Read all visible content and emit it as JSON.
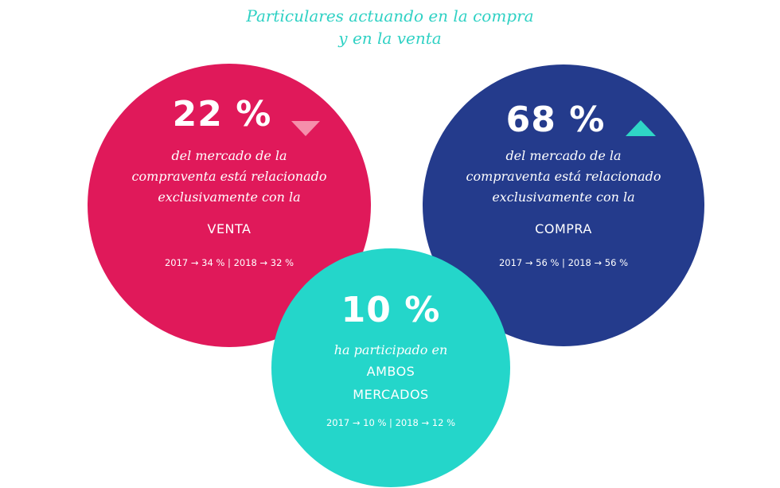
{
  "title": {
    "line1": "Particulares actuando en la compra",
    "line2": "y en la venta",
    "color": "#2fd1c4"
  },
  "chart_data": {
    "type": "bubble",
    "title": "Particulares actuando en la compra y en la venta",
    "items": [
      {
        "id": "venta",
        "value": 22,
        "value_label": "22 %",
        "trend": "down",
        "trend_color": "#f58fab",
        "description": [
          "del mercado de la",
          "compraventa está relacionado",
          "exclusivamente con la"
        ],
        "category": "VENTA",
        "history": {
          "2017": 34,
          "2018": 32
        },
        "history_label": "2017 → 34 % | 2018 → 32 %",
        "color": "#e0195a"
      },
      {
        "id": "compra",
        "value": 68,
        "value_label": "68 %",
        "trend": "up",
        "trend_color": "#2fd6c6",
        "description": [
          "del mercado de la",
          "compraventa está relacionado",
          "exclusivamente con la"
        ],
        "category": "COMPRA",
        "history": {
          "2017": 56,
          "2018": 56
        },
        "history_label": "2017 → 56 % | 2018 → 56 %",
        "color": "#243b8c"
      },
      {
        "id": "ambos",
        "value": 10,
        "value_label": "10 %",
        "description": [
          "ha participado en"
        ],
        "category": [
          "AMBOS",
          "MERCADOS"
        ],
        "history": {
          "2017": 10,
          "2018": 12
        },
        "history_label": "2017 → 10 % | 2018 → 12 %",
        "color": "#24d6ca"
      }
    ]
  }
}
